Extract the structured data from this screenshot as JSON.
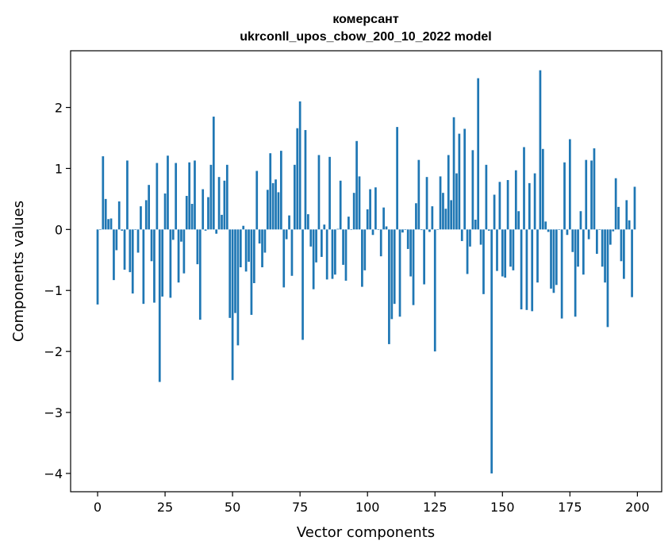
{
  "chart_data": {
    "type": "bar",
    "title": "комерсант",
    "subtitle": "ukrconll_upos_cbow_200_10_2022 model",
    "xlabel": "Vector components",
    "ylabel": "Components values",
    "xlim": [
      -10,
      209
    ],
    "ylim": [
      -4.3,
      2.93
    ],
    "xticks": [
      0,
      25,
      50,
      75,
      100,
      125,
      150,
      175,
      200
    ],
    "yticks": [
      -4,
      -3,
      -2,
      -1,
      0,
      1,
      2
    ],
    "grid": false,
    "legend": "none",
    "bar_color": "#1f77b4",
    "values": [
      -1.23,
      0.0,
      1.2,
      0.5,
      0.17,
      0.18,
      -0.83,
      -0.34,
      0.46,
      -0.02,
      -0.66,
      1.13,
      -0.7,
      -1.05,
      0.0,
      -0.38,
      0.38,
      -1.22,
      0.48,
      0.73,
      -0.52,
      -1.2,
      1.09,
      -2.5,
      -1.1,
      0.59,
      1.21,
      -1.12,
      -0.17,
      1.09,
      -0.87,
      -0.2,
      -0.72,
      0.55,
      1.1,
      0.42,
      1.13,
      -0.57,
      -1.48,
      0.66,
      -0.02,
      0.53,
      1.06,
      1.85,
      -0.07,
      0.86,
      0.24,
      0.8,
      1.06,
      -1.45,
      -2.47,
      -1.37,
      -1.9,
      -0.62,
      0.06,
      -0.69,
      -0.53,
      -1.4,
      -0.88,
      0.96,
      -0.23,
      -0.62,
      -0.38,
      0.65,
      1.25,
      0.76,
      0.82,
      0.61,
      1.29,
      -0.95,
      -0.16,
      0.23,
      -0.76,
      1.06,
      1.66,
      2.1,
      -1.81,
      1.63,
      0.25,
      -0.28,
      -0.98,
      -0.54,
      1.22,
      -0.45,
      0.08,
      -0.82,
      1.19,
      -0.81,
      -0.74,
      0.01,
      0.8,
      -0.58,
      -0.84,
      0.21,
      0.0,
      0.6,
      1.45,
      0.87,
      -0.94,
      -0.67,
      0.33,
      0.66,
      -0.09,
      0.69,
      0.0,
      -0.44,
      0.36,
      0.05,
      -1.88,
      -1.47,
      -1.22,
      1.68,
      -1.43,
      -0.05,
      0.0,
      -0.32,
      -0.77,
      -1.24,
      0.43,
      1.14,
      -0.01,
      -0.9,
      0.86,
      -0.04,
      0.38,
      -2.0,
      0.0,
      0.87,
      0.6,
      0.34,
      1.22,
      0.48,
      1.84,
      0.92,
      1.57,
      -0.19,
      1.65,
      -0.73,
      -0.28,
      1.3,
      0.16,
      2.48,
      -0.25,
      -1.06,
      1.06,
      -0.02,
      -4.0,
      0.57,
      -0.68,
      0.78,
      -0.77,
      -0.79,
      0.81,
      -0.61,
      -0.67,
      0.97,
      0.3,
      -1.31,
      1.35,
      -1.32,
      0.76,
      -1.34,
      0.92,
      -0.87,
      2.61,
      1.32,
      0.13,
      -0.04,
      -0.97,
      -1.04,
      -0.91,
      0.0,
      -1.46,
      1.1,
      -0.09,
      1.48,
      -0.37,
      -1.43,
      -0.61,
      0.3,
      -0.74,
      1.14,
      -0.16,
      1.13,
      1.33,
      -0.4,
      0.0,
      -0.61,
      -0.87,
      -1.6,
      -0.25,
      -0.03,
      0.84,
      0.37,
      -0.52,
      -0.81,
      0.48,
      0.15,
      -1.11,
      0.7
    ]
  }
}
